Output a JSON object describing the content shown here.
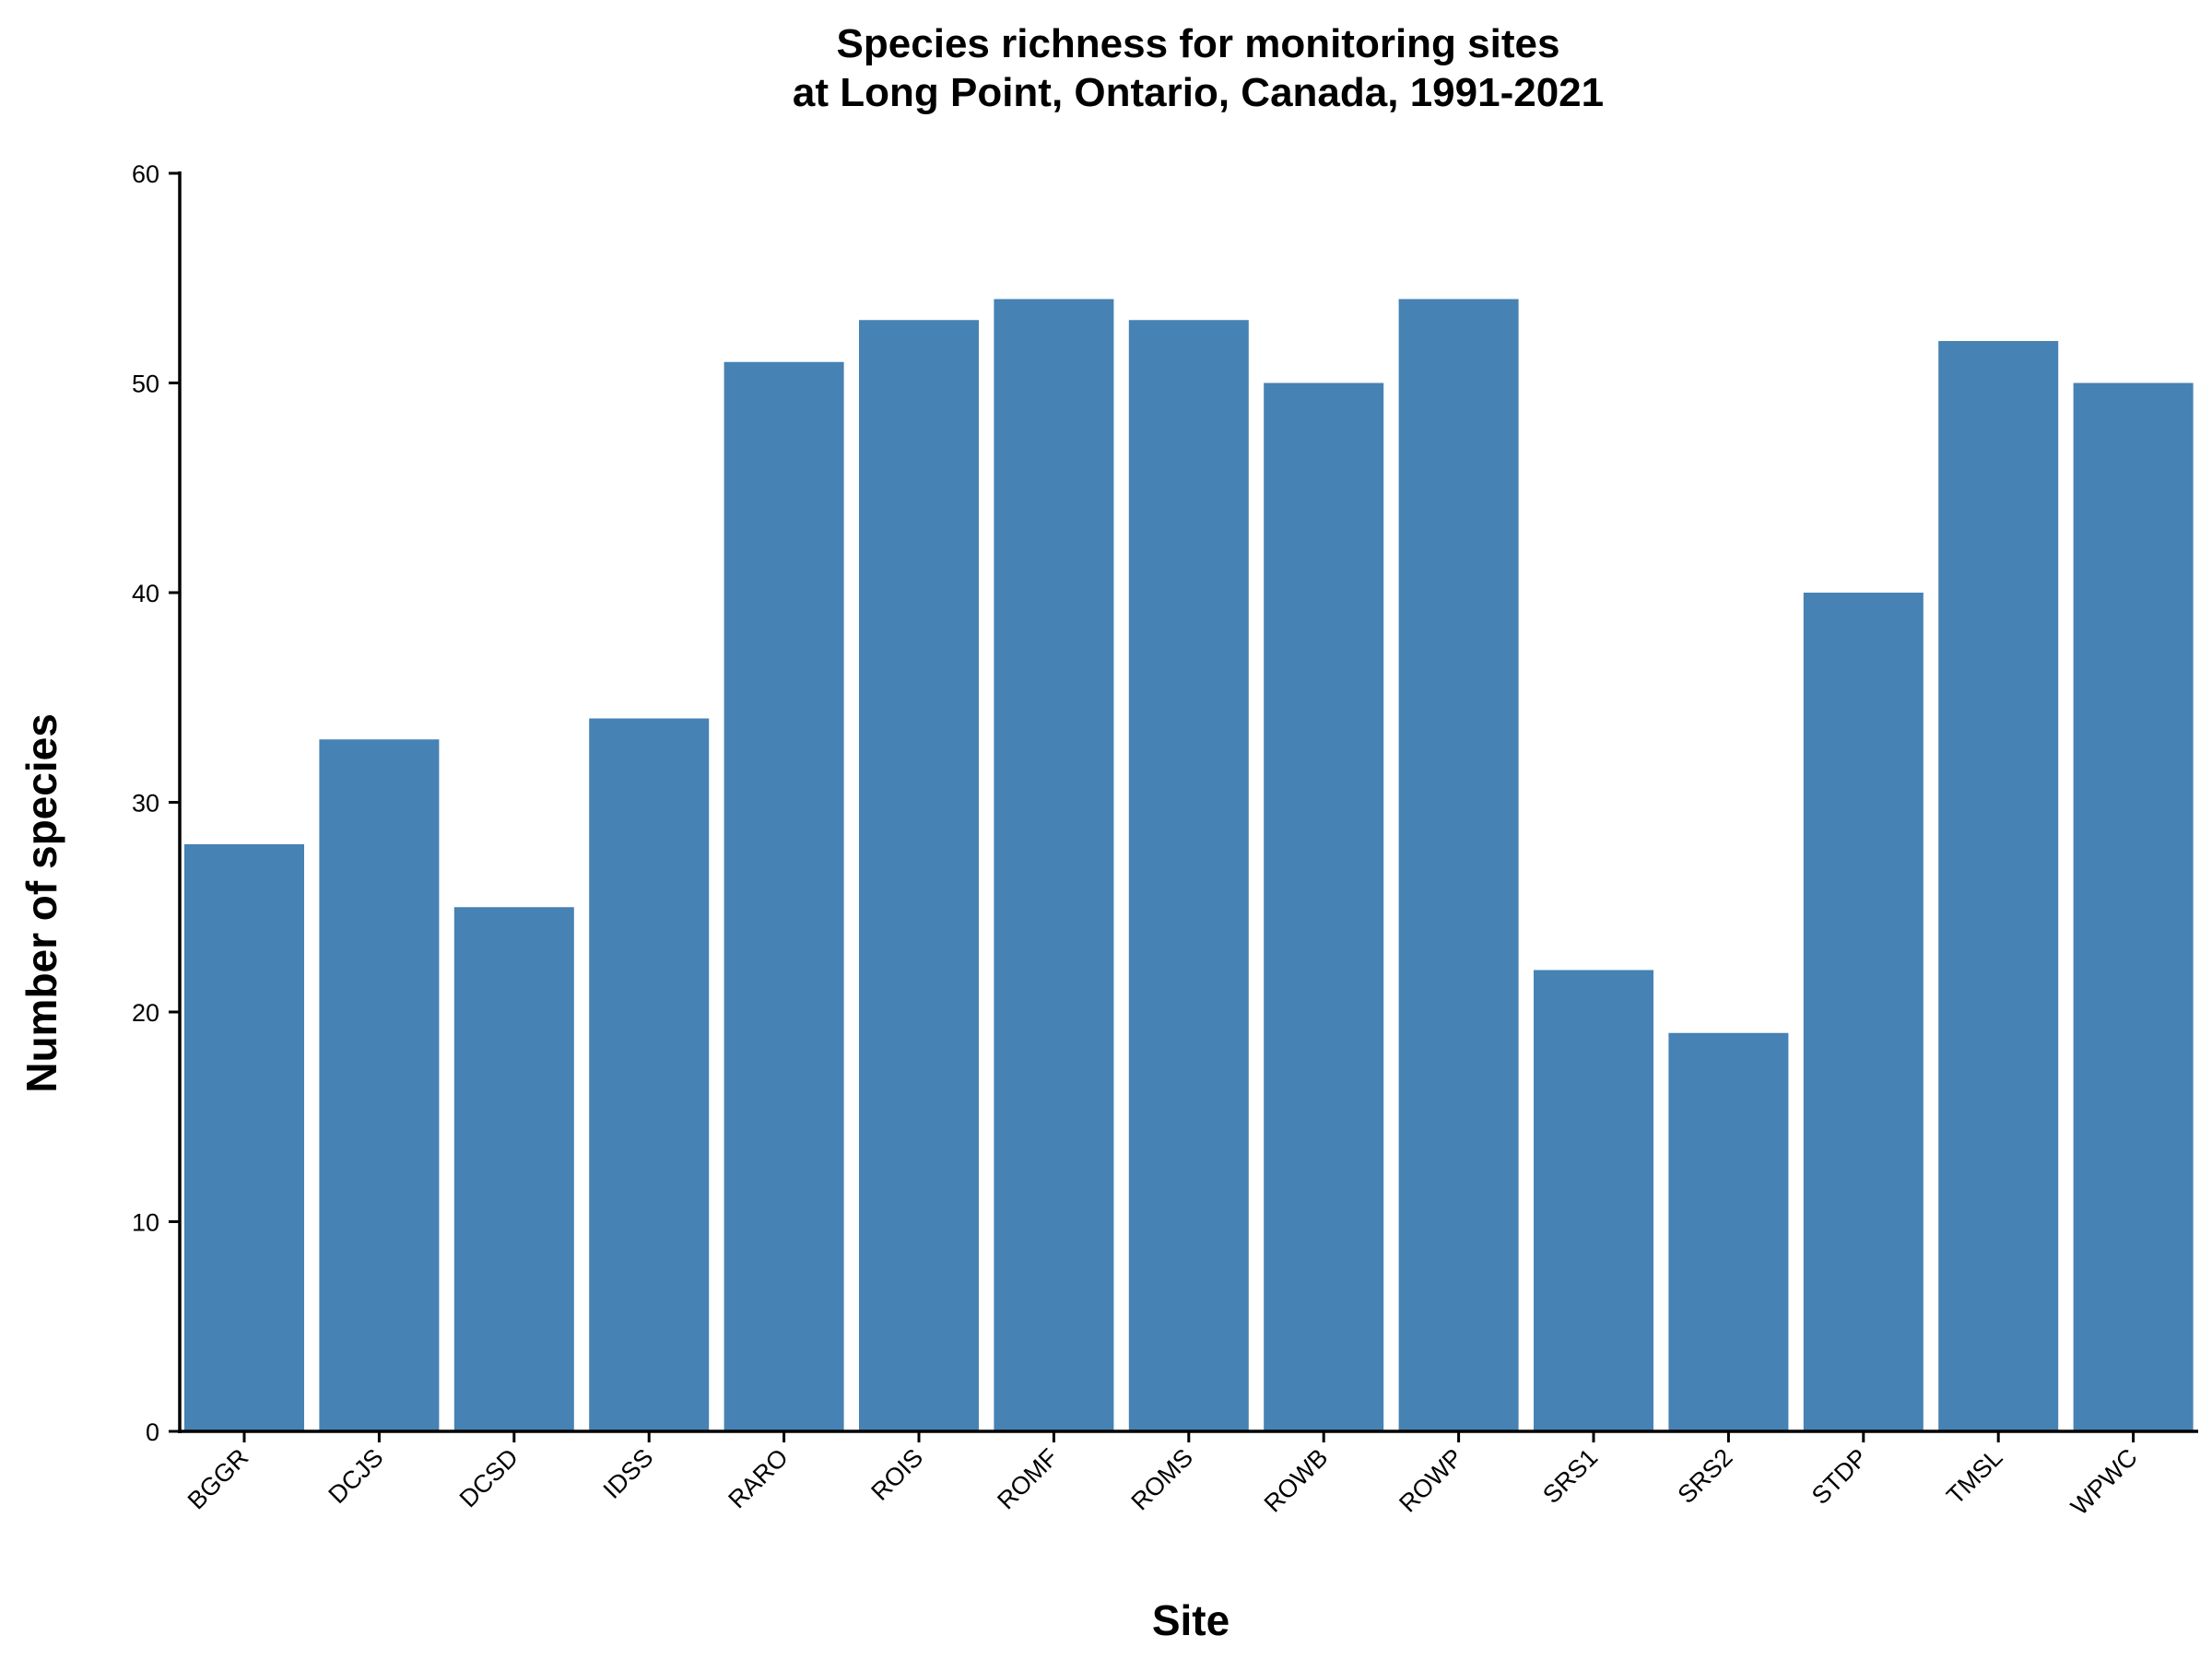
{
  "chart_data": {
    "type": "bar",
    "title_line1": "Species richness for monitoring sites",
    "title_line2": "at Long Point, Ontario, Canada, 1991-2021",
    "xlabel": "Site",
    "ylabel": "Number of species",
    "categories": [
      "BGGR",
      "DCJS",
      "DCSD",
      "IDSS",
      "RARO",
      "ROIS",
      "ROMF",
      "ROMS",
      "ROWB",
      "ROWP",
      "SRS1",
      "SRS2",
      "STDP",
      "TMSL",
      "WPWC"
    ],
    "values": [
      28,
      33,
      25,
      34,
      51,
      53,
      54,
      53,
      50,
      54,
      22,
      19,
      40,
      52,
      50
    ],
    "ylim": [
      0,
      60
    ],
    "yticks": [
      0,
      10,
      20,
      30,
      40,
      50,
      60
    ],
    "bar_color": "#4682B4",
    "grid": false,
    "legend": "none"
  }
}
